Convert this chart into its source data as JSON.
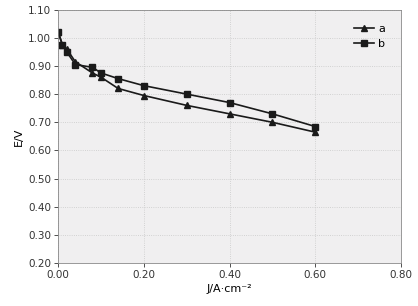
{
  "series_a": {
    "x": [
      0.0,
      0.01,
      0.02,
      0.04,
      0.08,
      0.1,
      0.14,
      0.2,
      0.3,
      0.4,
      0.5,
      0.6
    ],
    "y": [
      1.02,
      0.975,
      0.96,
      0.915,
      0.875,
      0.86,
      0.82,
      0.795,
      0.76,
      0.73,
      0.7,
      0.665
    ],
    "label": "a",
    "color": "#1a1a1a",
    "marker": "^",
    "linewidth": 1.2,
    "markersize": 4.5
  },
  "series_b": {
    "x": [
      0.0,
      0.01,
      0.02,
      0.04,
      0.08,
      0.1,
      0.14,
      0.2,
      0.3,
      0.4,
      0.5,
      0.6
    ],
    "y": [
      1.02,
      0.975,
      0.95,
      0.905,
      0.895,
      0.875,
      0.855,
      0.83,
      0.8,
      0.77,
      0.73,
      0.685
    ],
    "label": "b",
    "color": "#1a1a1a",
    "marker": "s",
    "linewidth": 1.2,
    "markersize": 4.5
  },
  "xlabel": "J/A·cm⁻²",
  "ylabel": "E/V",
  "xlim": [
    0.0,
    0.8
  ],
  "ylim": [
    0.2,
    1.1
  ],
  "xticks": [
    0.0,
    0.2,
    0.4,
    0.6,
    0.8
  ],
  "yticks": [
    0.2,
    0.3,
    0.4,
    0.5,
    0.6,
    0.7,
    0.8,
    0.9,
    1.0,
    1.1
  ],
  "xtick_labels": [
    "0.00",
    "0.20",
    "0.40",
    "0.60",
    "0.80"
  ],
  "ytick_labels": [
    "0.20",
    "0.30",
    "0.40",
    "0.50",
    "0.60",
    "0.70",
    "0.80",
    "0.90",
    "1.00",
    "1.10"
  ],
  "grid_color": "#c8c8c8",
  "bg_color": "#ffffff",
  "plot_bg": "#f0eff0",
  "legend_pos": "upper right",
  "xlabel_fontsize": 8,
  "ylabel_fontsize": 8,
  "tick_fontsize": 7.5,
  "legend_fontsize": 8
}
